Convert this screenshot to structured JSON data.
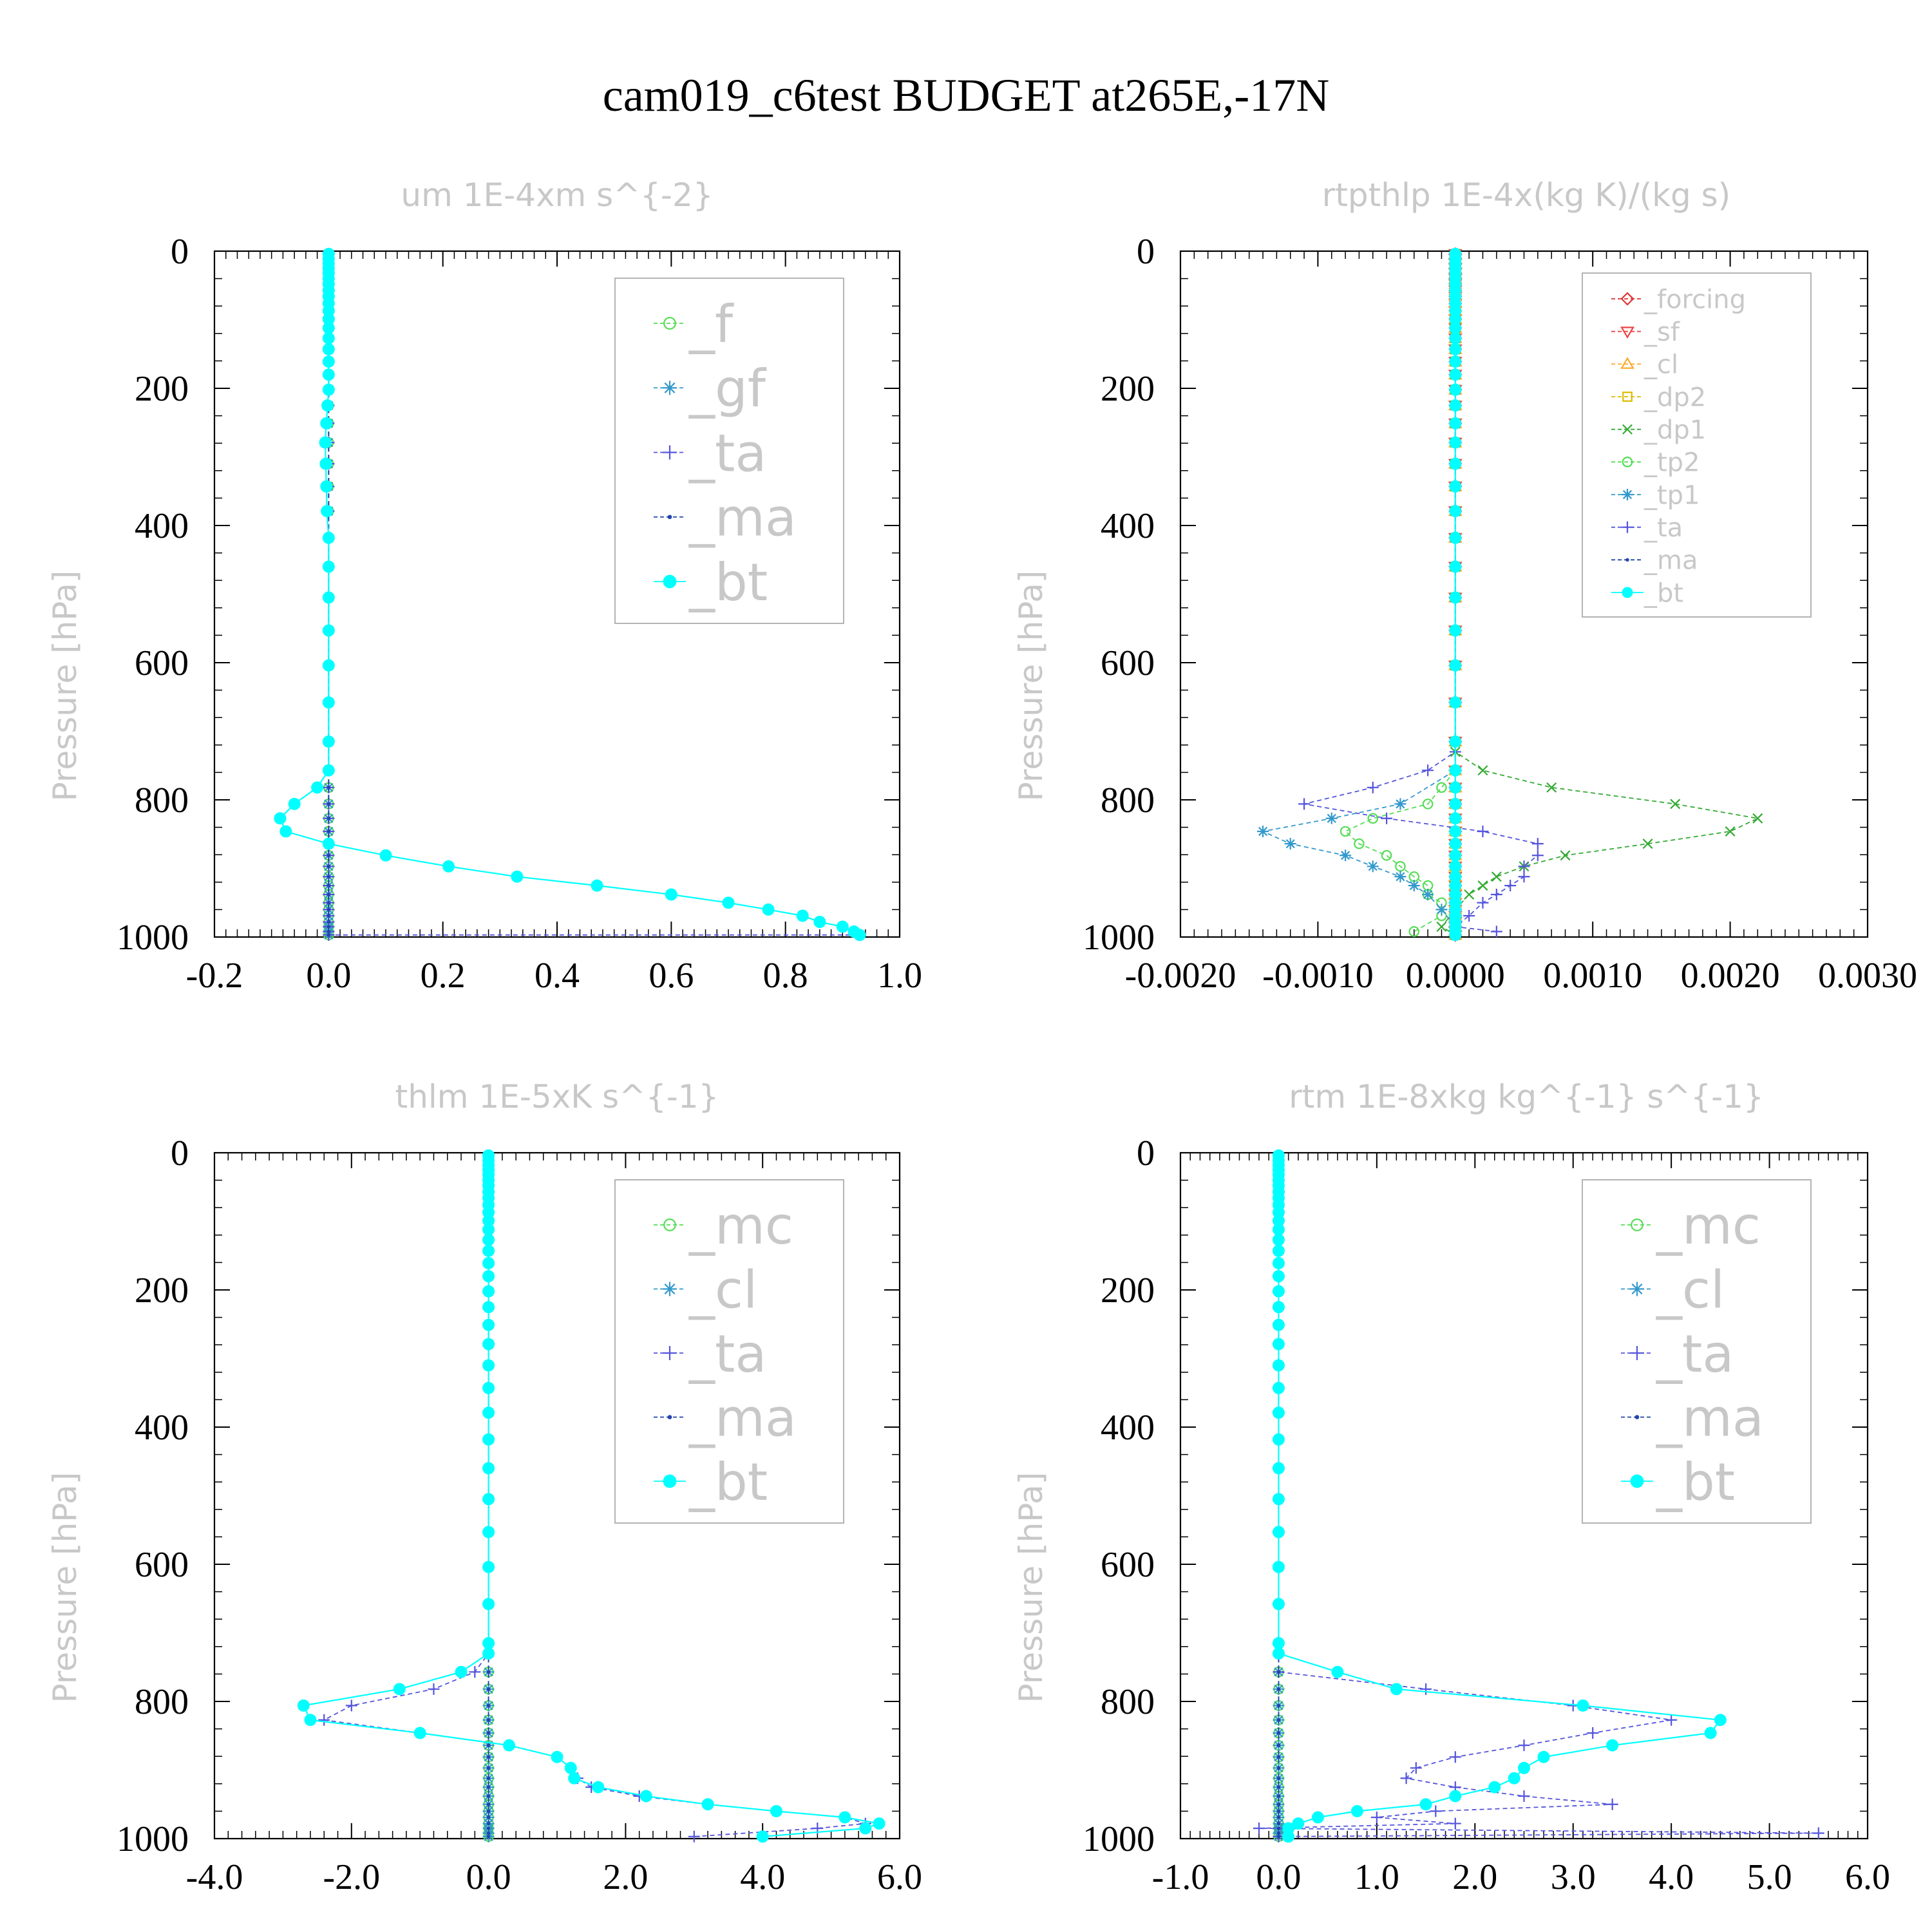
{
  "title": "cam019_c6test  BUDGET at265E,-17N",
  "chart_data": [
    {
      "type": "line",
      "title": "um   1E-4xm s^{-2}",
      "ylabel": "Pressure [hPa]",
      "ylim": [
        1000,
        0
      ],
      "xlim": [
        -0.2,
        1.0
      ],
      "xticks": [
        "-0.2",
        "0.0",
        "0.2",
        "0.4",
        "0.6",
        "0.8",
        "1.0"
      ],
      "yticks": [
        "0",
        "200",
        "400",
        "600",
        "800",
        "1000"
      ],
      "legend_position": "top-right",
      "levels": [
        4,
        11,
        18,
        25,
        32,
        40,
        48,
        57,
        66,
        76,
        87,
        99,
        112,
        127,
        143,
        161,
        180,
        202,
        225,
        251,
        279,
        310,
        343,
        379,
        418,
        460,
        505,
        553,
        604,
        658,
        715,
        757,
        782,
        806,
        827,
        846,
        864,
        881,
        897,
        912,
        925,
        938,
        950,
        960,
        969,
        978,
        985,
        992,
        997
      ],
      "series": [
        {
          "name": "_f",
          "color": "#55dd55",
          "marker": "circle-open",
          "x": {
            "const": 0.0
          }
        },
        {
          "name": "_gf",
          "color": "#3399cc",
          "marker": "star",
          "x": {
            "const": 0.0
          }
        },
        {
          "name": "_ta",
          "color": "#5555dd",
          "marker": "plus",
          "x": {
            "const": 0.0,
            "surface": 0.93
          }
        },
        {
          "name": "_ma",
          "color": "#2244aa",
          "marker": "dot",
          "x": {
            "const": 0.0
          }
        },
        {
          "name": "_bt",
          "color": "#00ffff",
          "marker": "circle-filled",
          "x": {
            "const": 0.0,
            "tail": [
              0.0,
              0.0,
              0.0,
              -0.002,
              -0.004,
              -0.006,
              -0.005,
              -0.004,
              -0.003,
              0.0,
              0.0,
              0.0,
              0.0,
              0.0,
              0.0,
              0.0,
              0.0,
              -0.02,
              -0.06,
              -0.085,
              -0.075,
              0.0,
              0.1,
              0.21,
              0.33,
              0.47,
              0.6,
              0.7,
              0.77,
              0.83,
              0.86,
              0.9,
              0.92,
              0.93
            ]
          }
        }
      ]
    },
    {
      "type": "line",
      "title": "rtpthlp   1E-4x(kg K)/(kg s)",
      "ylabel": "Pressure [hPa]",
      "ylim": [
        1000,
        0
      ],
      "xlim": [
        -0.002,
        0.003
      ],
      "xticks": [
        "-0.0020",
        "-0.0010",
        "0.0000",
        "0.0010",
        "0.0020",
        "0.0030"
      ],
      "yticks": [
        "0",
        "200",
        "400",
        "600",
        "800",
        "1000"
      ],
      "legend_position": "top-right",
      "series": [
        {
          "name": "_forcing",
          "color": "#dd3333",
          "marker": "diamond"
        },
        {
          "name": "_sf",
          "color": "#ee4444",
          "marker": "triangle-down"
        },
        {
          "name": "_cl",
          "color": "#ffaa33",
          "marker": "triangle-up"
        },
        {
          "name": "_dp2",
          "color": "#ddbb00",
          "marker": "square"
        },
        {
          "name": "_dp1",
          "color": "#33aa33",
          "marker": "x",
          "profile": [
            [
              0.0,
              730
            ],
            [
              0.0002,
              757
            ],
            [
              0.0007,
              782
            ],
            [
              0.0016,
              806
            ],
            [
              0.0022,
              827
            ],
            [
              0.002,
              846
            ],
            [
              0.0014,
              864
            ],
            [
              0.0008,
              881
            ],
            [
              0.0005,
              897
            ],
            [
              0.0003,
              912
            ],
            [
              0.0002,
              925
            ],
            [
              0.0001,
              938
            ],
            [
              0.0,
              960
            ],
            [
              -0.0001,
              985
            ],
            [
              0.0,
              997
            ]
          ]
        },
        {
          "name": "_tp2",
          "color": "#55dd55",
          "marker": "circle-open",
          "profile": [
            [
              0.0,
              757
            ],
            [
              -0.0001,
              782
            ],
            [
              -0.0002,
              806
            ],
            [
              -0.0006,
              827
            ],
            [
              -0.0008,
              846
            ],
            [
              -0.0007,
              864
            ],
            [
              -0.0005,
              881
            ],
            [
              -0.0004,
              897
            ],
            [
              -0.0003,
              912
            ],
            [
              -0.0002,
              925
            ],
            [
              -0.0002,
              938
            ],
            [
              -0.0001,
              950
            ],
            [
              -0.0001,
              969
            ],
            [
              -0.0003,
              992
            ]
          ]
        },
        {
          "name": "_tp1",
          "color": "#3399cc",
          "marker": "star",
          "profile": [
            [
              0.0,
              757
            ],
            [
              -0.0004,
              806
            ],
            [
              -0.0009,
              827
            ],
            [
              -0.0014,
              846
            ],
            [
              -0.0012,
              864
            ],
            [
              -0.0008,
              881
            ],
            [
              -0.0006,
              897
            ],
            [
              -0.0004,
              912
            ],
            [
              -0.0003,
              925
            ],
            [
              -0.0002,
              938
            ],
            [
              -0.0001,
              960
            ],
            [
              0.0,
              985
            ]
          ]
        },
        {
          "name": "_ta",
          "color": "#5555dd",
          "marker": "plus",
          "profile": [
            [
              0.0,
              730
            ],
            [
              -0.0002,
              757
            ],
            [
              -0.0006,
              782
            ],
            [
              -0.0011,
              806
            ],
            [
              -0.0005,
              827
            ],
            [
              0.0002,
              846
            ],
            [
              0.0006,
              864
            ],
            [
              0.0006,
              881
            ],
            [
              0.0005,
              897
            ],
            [
              0.0005,
              912
            ],
            [
              0.0004,
              925
            ],
            [
              0.0003,
              938
            ],
            [
              0.0002,
              950
            ],
            [
              0.0001,
              969
            ],
            [
              0.0,
              985
            ],
            [
              0.0003,
              992
            ]
          ]
        },
        {
          "name": "_ma",
          "color": "#2244aa",
          "marker": "dot"
        },
        {
          "name": "_bt",
          "color": "#00ffff",
          "marker": "circle-filled"
        }
      ]
    },
    {
      "type": "line",
      "title": "thlm   1E-5xK s^{-1}",
      "ylabel": "Pressure [hPa]",
      "ylim": [
        1000,
        0
      ],
      "xlim": [
        -4.0,
        6.0
      ],
      "xticks": [
        "-4.0",
        "-2.0",
        "0.0",
        "2.0",
        "4.0",
        "6.0"
      ],
      "yticks": [
        "0",
        "200",
        "400",
        "600",
        "800",
        "1000"
      ],
      "legend_position": "top-right",
      "series": [
        {
          "name": "_mc",
          "color": "#55dd55",
          "marker": "circle-open"
        },
        {
          "name": "_cl",
          "color": "#3399cc",
          "marker": "star"
        },
        {
          "name": "_ta",
          "color": "#5555dd",
          "marker": "plus",
          "profile": [
            [
              0.0,
              730
            ],
            [
              -0.2,
              757
            ],
            [
              -0.8,
              782
            ],
            [
              -2.0,
              806
            ],
            [
              -2.4,
              827
            ],
            [
              -1.0,
              846
            ],
            [
              0.3,
              864
            ],
            [
              1.0,
              881
            ],
            [
              1.2,
              897
            ],
            [
              1.3,
              912
            ],
            [
              1.5,
              925
            ],
            [
              2.2,
              938
            ],
            [
              3.2,
              950
            ],
            [
              4.2,
              960
            ],
            [
              5.2,
              969
            ],
            [
              5.5,
              978
            ],
            [
              4.8,
              985
            ],
            [
              3.0,
              997
            ]
          ]
        },
        {
          "name": "_ma",
          "color": "#2244aa",
          "marker": "dot"
        },
        {
          "name": "_bt",
          "color": "#00ffff",
          "marker": "circle-filled",
          "profile": [
            [
              0.0,
              730
            ],
            [
              -0.4,
              757
            ],
            [
              -1.3,
              782
            ],
            [
              -2.7,
              806
            ],
            [
              -2.6,
              827
            ],
            [
              -1.0,
              846
            ],
            [
              0.3,
              864
            ],
            [
              1.0,
              881
            ],
            [
              1.2,
              897
            ],
            [
              1.25,
              912
            ],
            [
              1.6,
              925
            ],
            [
              2.3,
              938
            ],
            [
              3.2,
              950
            ],
            [
              4.2,
              960
            ],
            [
              5.2,
              969
            ],
            [
              5.7,
              978
            ],
            [
              5.5,
              985
            ],
            [
              4.0,
              997
            ]
          ]
        }
      ]
    },
    {
      "type": "line",
      "title": "rtm   1E-8xkg kg^{-1} s^{-1}",
      "ylabel": "Pressure [hPa]",
      "ylim": [
        1000,
        0
      ],
      "xlim": [
        -1.0,
        6.0
      ],
      "xticks": [
        "-1.0",
        "0.0",
        "1.0",
        "2.0",
        "3.0",
        "4.0",
        "5.0",
        "6.0"
      ],
      "yticks": [
        "0",
        "200",
        "400",
        "600",
        "800",
        "1000"
      ],
      "legend_position": "top-right",
      "series": [
        {
          "name": "_mc",
          "color": "#55dd55",
          "marker": "circle-open"
        },
        {
          "name": "_cl",
          "color": "#3399cc",
          "marker": "star"
        },
        {
          "name": "_ta",
          "color": "#5555dd",
          "marker": "plus",
          "profile": [
            [
              0.0,
              730
            ],
            [
              0.0,
              757
            ],
            [
              1.5,
              782
            ],
            [
              3.0,
              806
            ],
            [
              4.0,
              827
            ],
            [
              3.2,
              846
            ],
            [
              2.5,
              864
            ],
            [
              1.8,
              881
            ],
            [
              1.4,
              897
            ],
            [
              1.3,
              912
            ],
            [
              1.8,
              925
            ],
            [
              2.5,
              938
            ],
            [
              3.4,
              950
            ],
            [
              1.6,
              960
            ],
            [
              1.0,
              969
            ],
            [
              1.8,
              978
            ],
            [
              -0.2,
              985
            ],
            [
              5.5,
              992
            ],
            [
              0.0,
              997
            ]
          ]
        },
        {
          "name": "_ma",
          "color": "#2244aa",
          "marker": "dot"
        },
        {
          "name": "_bt",
          "color": "#00ffff",
          "marker": "circle-filled",
          "profile": [
            [
              0.0,
              730
            ],
            [
              0.6,
              757
            ],
            [
              1.2,
              782
            ],
            [
              3.1,
              806
            ],
            [
              4.5,
              827
            ],
            [
              4.4,
              846
            ],
            [
              3.4,
              864
            ],
            [
              2.7,
              881
            ],
            [
              2.5,
              897
            ],
            [
              2.4,
              912
            ],
            [
              2.2,
              925
            ],
            [
              1.8,
              938
            ],
            [
              1.5,
              950
            ],
            [
              0.8,
              960
            ],
            [
              0.4,
              969
            ],
            [
              0.2,
              978
            ],
            [
              0.1,
              985
            ],
            [
              0.1,
              997
            ]
          ]
        }
      ]
    }
  ]
}
